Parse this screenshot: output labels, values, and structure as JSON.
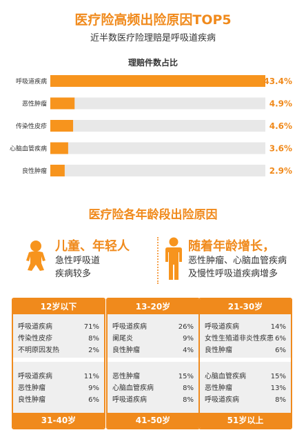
{
  "title": "医疗险高频出险原因TOP5",
  "subtitle": "近半数医疗险理赔是呼吸道疾病",
  "chart_data": {
    "type": "bar",
    "orientation": "horizontal",
    "title": "理赔件数占比",
    "categories": [
      "呼吸道疾病",
      "恶性肿瘤",
      "传染性皮疹",
      "心脑血管疾病",
      "良性肿瘤"
    ],
    "values": [
      43.4,
      4.9,
      4.6,
      3.6,
      2.9
    ],
    "value_labels": [
      "43.4%",
      "4.9%",
      "4.6%",
      "3.6%",
      "2.9%"
    ],
    "xlim": [
      0,
      43.4
    ],
    "colors": {
      "bar": "#f7941d",
      "track": "#e8e8e8",
      "label": "#f08a1c"
    }
  },
  "age_section": {
    "title": "医疗险各年龄段出险原因",
    "groups": [
      {
        "heading": "儿童、年轻人",
        "lines": [
          "急性呼吸道",
          "疾病较多"
        ],
        "icon": "child-icon"
      },
      {
        "heading": "随着年龄增长，",
        "lines": [
          "恶性肿瘤、心脑血管疾病",
          "及慢性呼吸道疾病增多"
        ],
        "icon": "adult-icon"
      }
    ],
    "panels": [
      {
        "top_label": "12岁以下",
        "top_rows": [
          {
            "name": "呼吸道疾病",
            "pct": "71%"
          },
          {
            "name": "传染性皮疹",
            "pct": "8%"
          },
          {
            "name": "不明原因发热",
            "pct": "2%"
          }
        ],
        "bottom_rows": [
          {
            "name": "呼吸道疾病",
            "pct": "11%"
          },
          {
            "name": "恶性肿瘤",
            "pct": "9%"
          },
          {
            "name": "良性肿瘤",
            "pct": "6%"
          }
        ],
        "bottom_label": "31-40岁"
      },
      {
        "top_label": "13-20岁",
        "top_rows": [
          {
            "name": "呼吸道疾病",
            "pct": "26%"
          },
          {
            "name": "阑尾炎",
            "pct": "9%"
          },
          {
            "name": "良性肿瘤",
            "pct": "4%"
          }
        ],
        "bottom_rows": [
          {
            "name": "恶性肿瘤",
            "pct": "15%"
          },
          {
            "name": "心脑血管疾病",
            "pct": "8%"
          },
          {
            "name": "呼吸道疾病",
            "pct": "8%"
          }
        ],
        "bottom_label": "41-50岁"
      },
      {
        "top_label": "21-30岁",
        "top_rows": [
          {
            "name": "呼吸道疾病",
            "pct": "14%"
          },
          {
            "name": "女性生殖道非炎性疾患",
            "pct": "6%"
          },
          {
            "name": "良性肿瘤",
            "pct": "6%"
          }
        ],
        "bottom_rows": [
          {
            "name": "心脑血管疾病",
            "pct": "15%"
          },
          {
            "name": "恶性肿瘤",
            "pct": "13%"
          },
          {
            "name": "呼吸道疾病",
            "pct": "8%"
          }
        ],
        "bottom_label": "51岁以上"
      }
    ]
  }
}
